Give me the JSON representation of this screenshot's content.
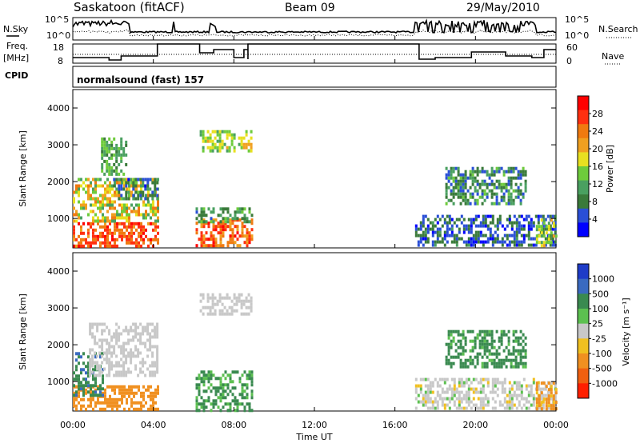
{
  "header": {
    "station": "Saskatoon (fitACF)",
    "beam": "Beam 09",
    "date": "29/May/2010"
  },
  "sky_panel": {
    "left_label": "N.Sky",
    "right_label": "N.Search",
    "tick_top": "10^5",
    "tick_bottom": "10^0"
  },
  "freq_panel": {
    "left_label_1": "Freq.",
    "left_label_2": "[MHz]",
    "left_ticks": [
      "18",
      "8"
    ],
    "right_ticks": [
      "60",
      "0"
    ],
    "right_label": "Nave"
  },
  "cpid": {
    "label": "CPID",
    "value": "normalsound (fast) 157"
  },
  "colors": {
    "power": [
      "#0000ff",
      "#2a4fd6",
      "#3a7a3a",
      "#4aa060",
      "#6ecb3c",
      "#e8e020",
      "#f0a020",
      "#f07a10",
      "#ff3010",
      "#ff0000"
    ],
    "velocity": [
      "#1e3cc8",
      "#3a6ac0",
      "#3a8a50",
      "#5cc050",
      "#c8c8c8",
      "#f0c020",
      "#f09020",
      "#f06010",
      "#ff2000"
    ]
  },
  "chart_data": [
    {
      "type": "heatmap",
      "name": "power",
      "ylabel": "Slant Range [km]",
      "yticks": [
        "1000",
        "2000",
        "3000",
        "4000"
      ],
      "ylim": [
        200,
        4500
      ],
      "xlim_hours": [
        0,
        24
      ],
      "colorbar": {
        "label": "Power [dB]",
        "ticks": [
          "4",
          "8",
          "12",
          "16",
          "20",
          "24",
          "28"
        ],
        "range": [
          0,
          32
        ]
      },
      "echo_regions": [
        {
          "t": [
            0.0,
            4.2
          ],
          "r": [
            250,
            900
          ],
          "v": [
            22,
            30
          ]
        },
        {
          "t": [
            0.0,
            4.2
          ],
          "r": [
            900,
            2100
          ],
          "v": [
            10,
            24
          ]
        },
        {
          "t": [
            2.0,
            4.2
          ],
          "r": [
            1500,
            2100
          ],
          "v": [
            3,
            12
          ]
        },
        {
          "t": [
            1.4,
            2.6
          ],
          "r": [
            2200,
            3200
          ],
          "v": [
            8,
            16
          ]
        },
        {
          "t": [
            6.1,
            8.9
          ],
          "r": [
            250,
            1000
          ],
          "v": [
            20,
            30
          ]
        },
        {
          "t": [
            6.1,
            8.9
          ],
          "r": [
            900,
            1300
          ],
          "v": [
            6,
            14
          ]
        },
        {
          "t": [
            6.3,
            8.9
          ],
          "r": [
            2800,
            3400
          ],
          "v": [
            12,
            20
          ]
        },
        {
          "t": [
            17.0,
            24.0
          ],
          "r": [
            250,
            1100
          ],
          "v": [
            2,
            10
          ]
        },
        {
          "t": [
            18.5,
            22.5
          ],
          "r": [
            1400,
            2400
          ],
          "v": [
            4,
            14
          ]
        },
        {
          "t": [
            23.0,
            24.0
          ],
          "r": [
            300,
            1000
          ],
          "v": [
            10,
            20
          ]
        }
      ]
    },
    {
      "type": "heatmap",
      "name": "velocity",
      "ylabel": "Slant Range [km]",
      "yticks": [
        "1000",
        "2000",
        "3000",
        "4000"
      ],
      "ylim": [
        200,
        4500
      ],
      "xlim_hours": [
        0,
        24
      ],
      "xlabel": "Time UT",
      "xticks": [
        "00:00",
        "04:00",
        "08:00",
        "12:00",
        "16:00",
        "20:00",
        "00:00"
      ],
      "colorbar": {
        "label": "Velocity [m s⁻¹]",
        "ticks": [
          "1000",
          "500",
          "100",
          "25",
          "-25",
          "-100",
          "-500",
          "-1000"
        ]
      },
      "echo_regions": [
        {
          "t": [
            0.0,
            4.2
          ],
          "r": [
            250,
            900
          ],
          "v": [
            -300,
            -100
          ]
        },
        {
          "t": [
            0.0,
            1.5
          ],
          "r": [
            600,
            1800
          ],
          "v": [
            200,
            600
          ]
        },
        {
          "t": [
            0.8,
            4.2
          ],
          "r": [
            1200,
            2600
          ],
          "v": [
            -20,
            20
          ]
        },
        {
          "t": [
            6.1,
            8.9
          ],
          "r": [
            250,
            1300
          ],
          "v": [
            50,
            200
          ]
        },
        {
          "t": [
            6.3,
            8.9
          ],
          "r": [
            2800,
            3400
          ],
          "v": [
            -20,
            20
          ]
        },
        {
          "t": [
            17.0,
            24.0
          ],
          "r": [
            250,
            1100
          ],
          "v": [
            -30,
            30
          ]
        },
        {
          "t": [
            18.5,
            22.5
          ],
          "r": [
            1400,
            2400
          ],
          "v": [
            60,
            300
          ]
        },
        {
          "t": [
            23.0,
            24.0
          ],
          "r": [
            300,
            1000
          ],
          "v": [
            -200,
            -80
          ]
        }
      ]
    }
  ]
}
